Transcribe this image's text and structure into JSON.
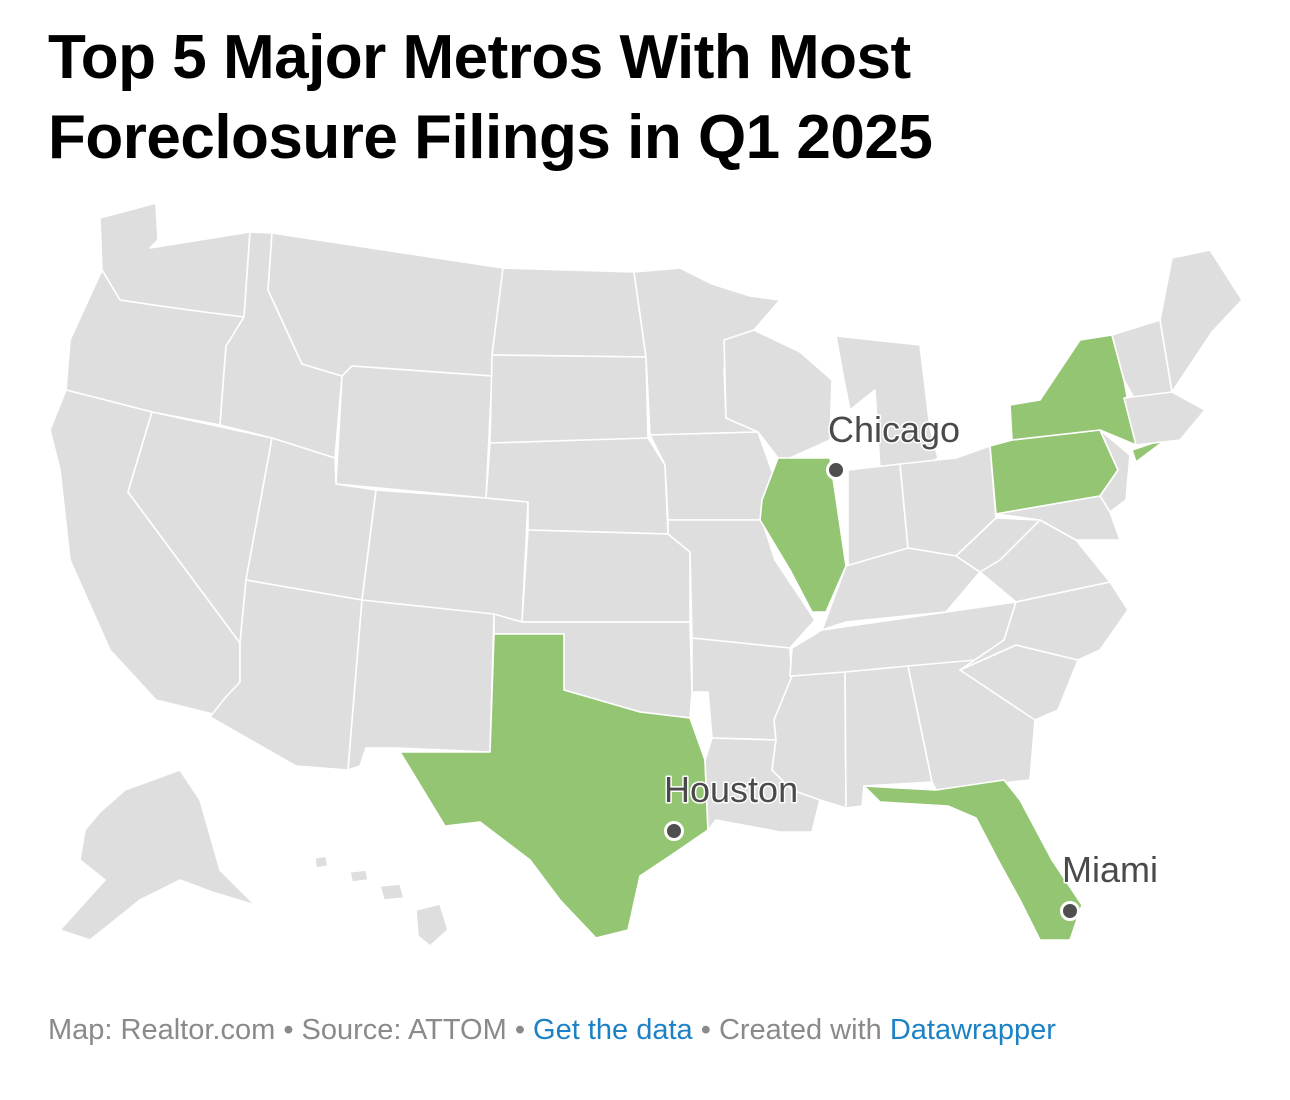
{
  "title": "Top 5 Major Metros With Most Foreclosure Filings in Q1 2025",
  "colors": {
    "highlight": "#93c572",
    "base": "#dedede",
    "border": "#ffffff",
    "marker": "#4f4f4f",
    "label": "#4a4a4a",
    "link": "#1d81c6"
  },
  "highlighted_states": [
    "Illinois",
    "Texas",
    "Florida",
    "New York",
    "Pennsylvania"
  ],
  "cities": [
    {
      "name": "Chicago",
      "state": "Illinois"
    },
    {
      "name": "Houston",
      "state": "Texas"
    },
    {
      "name": "Miami",
      "state": "Florida"
    }
  ],
  "footer": {
    "map_credit": "Map: Realtor.com",
    "separator": "•",
    "source": "Source: ATTOM",
    "get_data": "Get the data",
    "created_with": "Created with",
    "datawrapper": "Datawrapper"
  }
}
